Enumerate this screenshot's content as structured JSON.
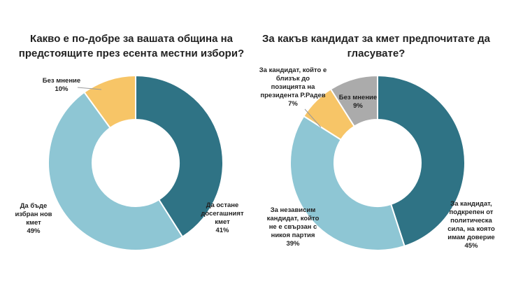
{
  "colors": {
    "dark_teal": "#2F7385",
    "light_blue": "#8EC6D4",
    "yellow": "#F7C567",
    "gray": "#ABABAB"
  },
  "chart_data": [
    {
      "type": "pie",
      "donut": true,
      "title_lines": [
        "Какво е по-добре за вашата община на",
        "предстоящите през есента местни избори?"
      ],
      "slices": [
        {
          "label_lines": [
            "Да остане",
            "досегашният",
            "кмет"
          ],
          "value": 41,
          "value_label": "41%",
          "color": "#2F7385"
        },
        {
          "label_lines": [
            "Да бъде",
            "избран нов",
            "кмет"
          ],
          "value": 49,
          "value_label": "49%",
          "color": "#8EC6D4"
        },
        {
          "label_lines": [
            "Без мнение"
          ],
          "value": 10,
          "value_label": "10%",
          "color": "#F7C567"
        }
      ]
    },
    {
      "type": "pie",
      "donut": true,
      "title_lines": [
        "За какъв кандидат за кмет предпочитате да",
        "гласувате?"
      ],
      "slices": [
        {
          "label_lines": [
            "За кандидат,",
            "подкрепен от",
            "политическа",
            "сила, на която",
            "имам доверие"
          ],
          "value": 45,
          "value_label": "45%",
          "color": "#2F7385"
        },
        {
          "label_lines": [
            "За независим",
            "кандидат, който",
            "не е свързан с",
            "никоя партия"
          ],
          "value": 39,
          "value_label": "39%",
          "color": "#8EC6D4"
        },
        {
          "label_lines": [
            "За кандидат, който е",
            "близък до",
            "позицията на",
            "президента Р.Радев"
          ],
          "value": 7,
          "value_label": "7%",
          "color": "#F7C567"
        },
        {
          "label_lines": [
            "Без мнение"
          ],
          "value": 9,
          "value_label": "9%",
          "color": "#ABABAB"
        }
      ]
    }
  ]
}
